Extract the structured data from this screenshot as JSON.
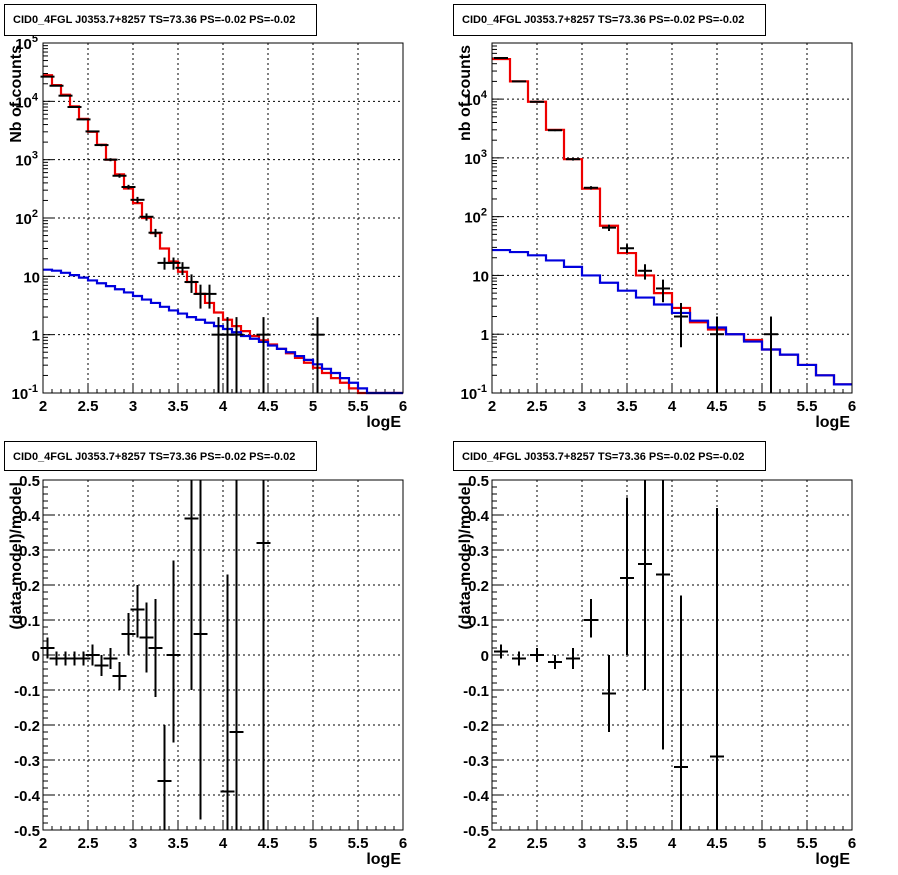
{
  "colors": {
    "data": "#000000",
    "total_model": "#ee0000",
    "background_model": "#0000dd",
    "grid": "#000000"
  },
  "panels": [
    {
      "title": "CID0_4FGL J0353.7+8257 TS=73.36 PS=-0.02 PS=-0.02"
    },
    {
      "title": "CID0_4FGL J0353.7+8257 TS=73.36 PS=-0.02 PS=-0.02"
    },
    {
      "title": "CID0_4FGL J0353.7+8257 TS=73.36 PS=-0.02 PS=-0.02"
    },
    {
      "title": "CID0_4FGL J0353.7+8257 TS=73.36 PS=-0.02 PS=-0.02"
    }
  ],
  "chart_data": [
    {
      "type": "line",
      "xlabel": "logE",
      "ylabel": "Nb of counts",
      "xlim": [
        2,
        6
      ],
      "ylim": [
        0.1,
        100000
      ],
      "log_y": true,
      "grid": true,
      "xticks": [
        "2",
        "2.5",
        "3",
        "3.5",
        "4",
        "4.5",
        "5",
        "5.5",
        "6"
      ],
      "yticks": [
        "10^-1",
        "1",
        "10",
        "10^2",
        "10^3",
        "10^4",
        "10^5"
      ],
      "step_edges": [
        2.0,
        2.1,
        2.2,
        2.3,
        2.4,
        2.5,
        2.6,
        2.7,
        2.8,
        2.9,
        3.0,
        3.1,
        3.2,
        3.3,
        3.4,
        3.5,
        3.6,
        3.7,
        3.8,
        3.9,
        4.0,
        4.1,
        4.2,
        4.3,
        4.4,
        4.5,
        4.6,
        4.7,
        4.8,
        4.9,
        5.0,
        5.1,
        5.2,
        5.3,
        5.4,
        5.5,
        5.6,
        5.7,
        5.8,
        5.9,
        6.0
      ],
      "series": [
        {
          "name": "total model",
          "color": "red",
          "values": [
            28000,
            19000,
            13000,
            8200,
            5000,
            3000,
            1800,
            1000,
            560,
            320,
            180,
            100,
            55,
            30,
            18,
            12,
            8,
            5,
            3.5,
            2.4,
            1.8,
            1.4,
            1.15,
            0.95,
            0.8,
            0.68,
            0.57,
            0.48,
            0.4,
            0.33,
            0.27,
            0.22,
            0.18,
            0.15,
            0.12,
            0.1,
            0.09,
            0.08,
            0.07,
            0.06
          ]
        },
        {
          "name": "background model",
          "color": "blue",
          "values": [
            13,
            12.5,
            11.5,
            10.5,
            9.5,
            8.5,
            7.6,
            6.8,
            6.0,
            5.3,
            4.6,
            4.0,
            3.5,
            3.0,
            2.6,
            2.3,
            2.0,
            1.8,
            1.6,
            1.4,
            1.25,
            1.1,
            0.95,
            0.85,
            0.75,
            0.65,
            0.57,
            0.5,
            0.43,
            0.37,
            0.31,
            0.26,
            0.22,
            0.18,
            0.15,
            0.12,
            0.1,
            0.09,
            0.08,
            0.07
          ]
        },
        {
          "name": "data",
          "color": "black",
          "type": "errorbar",
          "points": [
            {
              "x": 2.05,
              "y": 26500,
              "lo": 26000,
              "hi": 27000
            },
            {
              "x": 2.15,
              "y": 18500,
              "lo": 18200,
              "hi": 18800
            },
            {
              "x": 2.25,
              "y": 12500,
              "lo": 12300,
              "hi": 12700
            },
            {
              "x": 2.35,
              "y": 8000,
              "lo": 7800,
              "hi": 8200
            },
            {
              "x": 2.45,
              "y": 4900,
              "lo": 4750,
              "hi": 5050
            },
            {
              "x": 2.55,
              "y": 3050,
              "lo": 2950,
              "hi": 3150
            },
            {
              "x": 2.65,
              "y": 1780,
              "lo": 1700,
              "hi": 1860
            },
            {
              "x": 2.75,
              "y": 1000,
              "lo": 940,
              "hi": 1060
            },
            {
              "x": 2.85,
              "y": 530,
              "lo": 490,
              "hi": 570
            },
            {
              "x": 2.95,
              "y": 340,
              "lo": 310,
              "hi": 370
            },
            {
              "x": 3.05,
              "y": 205,
              "lo": 180,
              "hi": 230
            },
            {
              "x": 3.15,
              "y": 105,
              "lo": 90,
              "hi": 120
            },
            {
              "x": 3.25,
              "y": 56,
              "lo": 47,
              "hi": 65
            },
            {
              "x": 3.35,
              "y": 17,
              "lo": 13,
              "hi": 21
            },
            {
              "x": 3.45,
              "y": 17,
              "lo": 13,
              "hi": 21
            },
            {
              "x": 3.55,
              "y": 14,
              "lo": 10.5,
              "hi": 17.5
            },
            {
              "x": 3.65,
              "y": 8,
              "lo": 5.2,
              "hi": 10.8
            },
            {
              "x": 3.75,
              "y": 5,
              "lo": 2.8,
              "hi": 7.2
            },
            {
              "x": 3.85,
              "y": 5,
              "lo": 2.8,
              "hi": 7.2
            },
            {
              "x": 3.95,
              "y": 1,
              "lo": 0.1,
              "hi": 2
            },
            {
              "x": 4.05,
              "y": 1,
              "lo": 0.1,
              "hi": 2
            },
            {
              "x": 4.15,
              "y": 1,
              "lo": 0.1,
              "hi": 2
            },
            {
              "x": 4.45,
              "y": 1,
              "lo": 0.1,
              "hi": 2
            },
            {
              "x": 5.05,
              "y": 1,
              "lo": 0.1,
              "hi": 2
            }
          ]
        }
      ]
    },
    {
      "type": "line",
      "xlabel": "logE",
      "ylabel": "nb of counts",
      "xlim": [
        2,
        6
      ],
      "ylim": [
        0.1,
        90000
      ],
      "log_y": true,
      "grid": true,
      "xticks": [
        "2",
        "2.5",
        "3",
        "3.5",
        "4",
        "4.5",
        "5",
        "5.5",
        "6"
      ],
      "yticks": [
        "10^-1",
        "1",
        "10",
        "10^2",
        "10^3",
        "10^4"
      ],
      "step_edges": [
        2.0,
        2.2,
        2.4,
        2.6,
        2.8,
        3.0,
        3.2,
        3.4,
        3.6,
        3.8,
        4.0,
        4.2,
        4.4,
        4.6,
        4.8,
        5.0,
        5.2,
        5.4,
        5.6,
        5.8,
        6.0
      ],
      "series": [
        {
          "name": "total model",
          "color": "red",
          "values": [
            48000,
            20000,
            9000,
            3000,
            950,
            300,
            70,
            24,
            10,
            5,
            2.8,
            1.6,
            1.2,
            1.0,
            0.8,
            0.55,
            0.45,
            0.3,
            0.2,
            0.14
          ]
        },
        {
          "name": "background model",
          "color": "blue",
          "values": [
            27,
            25,
            22,
            18,
            14,
            10,
            7.5,
            5.5,
            4.2,
            3.2,
            2.3,
            1.7,
            1.3,
            1.0,
            0.75,
            0.55,
            0.45,
            0.3,
            0.2,
            0.14
          ]
        },
        {
          "name": "data",
          "color": "black",
          "type": "errorbar",
          "points": [
            {
              "x": 2.1,
              "y": 50000,
              "lo": 49700,
              "hi": 50300
            },
            {
              "x": 2.3,
              "y": 20000,
              "lo": 19700,
              "hi": 20300
            },
            {
              "x": 2.5,
              "y": 9000,
              "lo": 8800,
              "hi": 9200
            },
            {
              "x": 2.7,
              "y": 2950,
              "lo": 2850,
              "hi": 3050
            },
            {
              "x": 2.9,
              "y": 950,
              "lo": 900,
              "hi": 1000
            },
            {
              "x": 3.1,
              "y": 310,
              "lo": 290,
              "hi": 330
            },
            {
              "x": 3.3,
              "y": 65,
              "lo": 57,
              "hi": 73
            },
            {
              "x": 3.5,
              "y": 29,
              "lo": 24,
              "hi": 34
            },
            {
              "x": 3.7,
              "y": 12,
              "lo": 8.5,
              "hi": 15.5
            },
            {
              "x": 3.9,
              "y": 6,
              "lo": 3.5,
              "hi": 8.5
            },
            {
              "x": 4.1,
              "y": 2,
              "lo": 0.6,
              "hi": 3.4
            },
            {
              "x": 4.5,
              "y": 1,
              "lo": 0.1,
              "hi": 2
            },
            {
              "x": 5.1,
              "y": 1,
              "lo": 0.1,
              "hi": 2
            }
          ]
        }
      ]
    },
    {
      "type": "scatter",
      "xlabel": "logE",
      "ylabel": "(data-model)/model",
      "xlim": [
        2,
        6
      ],
      "ylim": [
        -0.5,
        0.5
      ],
      "grid": true,
      "xticks": [
        "2",
        "2.5",
        "3",
        "3.5",
        "4",
        "4.5",
        "5",
        "5.5",
        "6"
      ],
      "yticks": [
        "-0.5",
        "-0.4",
        "-0.3",
        "-0.2",
        "-0.1",
        "0",
        "0.1",
        "0.2",
        "0.3",
        "0.4",
        "0.5"
      ],
      "series": [
        {
          "name": "residuals",
          "color": "black",
          "type": "errorbar",
          "points": [
            {
              "x": 2.05,
              "y": 0.02,
              "lo": -0.01,
              "hi": 0.05
            },
            {
              "x": 2.15,
              "y": -0.01,
              "lo": -0.03,
              "hi": 0.01
            },
            {
              "x": 2.25,
              "y": -0.01,
              "lo": -0.03,
              "hi": 0.01
            },
            {
              "x": 2.35,
              "y": -0.01,
              "lo": -0.03,
              "hi": 0.01
            },
            {
              "x": 2.45,
              "y": -0.01,
              "lo": -0.03,
              "hi": 0.01
            },
            {
              "x": 2.55,
              "y": 0.0,
              "lo": -0.03,
              "hi": 0.03
            },
            {
              "x": 2.65,
              "y": -0.03,
              "lo": -0.06,
              "hi": 0.0
            },
            {
              "x": 2.75,
              "y": -0.01,
              "lo": -0.04,
              "hi": 0.02
            },
            {
              "x": 2.85,
              "y": -0.06,
              "lo": -0.1,
              "hi": -0.02
            },
            {
              "x": 2.95,
              "y": 0.06,
              "lo": 0.0,
              "hi": 0.12
            },
            {
              "x": 3.05,
              "y": 0.13,
              "lo": 0.05,
              "hi": 0.2
            },
            {
              "x": 3.15,
              "y": 0.05,
              "lo": -0.05,
              "hi": 0.15
            },
            {
              "x": 3.25,
              "y": 0.02,
              "lo": -0.12,
              "hi": 0.16
            },
            {
              "x": 3.35,
              "y": -0.36,
              "lo": -0.5,
              "hi": -0.2
            },
            {
              "x": 3.45,
              "y": 0.0,
              "lo": -0.25,
              "hi": 0.27
            },
            {
              "x": 3.65,
              "y": 0.39,
              "lo": -0.1,
              "hi": 0.5
            },
            {
              "x": 3.75,
              "y": 0.06,
              "lo": -0.47,
              "hi": 0.5
            },
            {
              "x": 4.05,
              "y": -0.39,
              "lo": -0.5,
              "hi": 0.23
            },
            {
              "x": 4.15,
              "y": -0.22,
              "lo": -0.5,
              "hi": 0.5
            },
            {
              "x": 4.45,
              "y": 0.32,
              "lo": -0.5,
              "hi": 0.5
            }
          ]
        }
      ]
    },
    {
      "type": "scatter",
      "xlabel": "logE",
      "ylabel": "(data-model)/model",
      "xlim": [
        2,
        6
      ],
      "ylim": [
        -0.5,
        0.5
      ],
      "grid": true,
      "xticks": [
        "2",
        "2.5",
        "3",
        "3.5",
        "4",
        "4.5",
        "5",
        "5.5",
        "6"
      ],
      "yticks": [
        "-0.5",
        "-0.4",
        "-0.3",
        "-0.2",
        "-0.1",
        "0",
        "0.1",
        "0.2",
        "0.3",
        "0.4",
        "0.5"
      ],
      "series": [
        {
          "name": "residuals",
          "color": "black",
          "type": "errorbar",
          "points": [
            {
              "x": 2.1,
              "y": 0.01,
              "lo": -0.01,
              "hi": 0.03
            },
            {
              "x": 2.3,
              "y": -0.01,
              "lo": -0.03,
              "hi": 0.01
            },
            {
              "x": 2.5,
              "y": 0.0,
              "lo": -0.02,
              "hi": 0.02
            },
            {
              "x": 2.7,
              "y": -0.02,
              "lo": -0.04,
              "hi": 0.0
            },
            {
              "x": 2.9,
              "y": -0.01,
              "lo": -0.04,
              "hi": 0.02
            },
            {
              "x": 3.1,
              "y": 0.1,
              "lo": 0.05,
              "hi": 0.16
            },
            {
              "x": 3.3,
              "y": -0.11,
              "lo": -0.22,
              "hi": 0.0
            },
            {
              "x": 3.5,
              "y": 0.22,
              "lo": 0.0,
              "hi": 0.45
            },
            {
              "x": 3.7,
              "y": 0.26,
              "lo": -0.1,
              "hi": 0.5
            },
            {
              "x": 3.9,
              "y": 0.23,
              "lo": -0.27,
              "hi": 0.5
            },
            {
              "x": 4.1,
              "y": -0.32,
              "lo": -0.5,
              "hi": 0.17
            },
            {
              "x": 4.5,
              "y": -0.29,
              "lo": -0.5,
              "hi": 0.42
            }
          ]
        }
      ]
    }
  ]
}
